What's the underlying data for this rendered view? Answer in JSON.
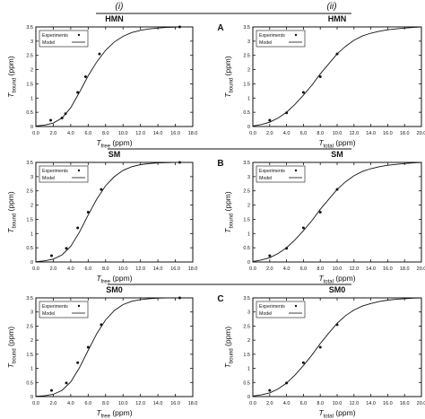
{
  "header": {
    "col_left_label": "(i)",
    "col_right_label": "(ii)"
  },
  "row_labels": [
    "A",
    "B",
    "C"
  ],
  "chart_data": [
    {
      "type": "scatter",
      "title": "HMN",
      "xlabel_main": "T",
      "xlabel_sub": "free",
      "xlabel_unit": "(ppm)",
      "ylabel_main": "T",
      "ylabel_sub": "bound",
      "ylabel_unit": "(ppm)",
      "xlim": [
        0,
        18
      ],
      "ylim": [
        0,
        3.5
      ],
      "xticks": [
        "0.0",
        "2.0",
        "4.0",
        "6.0",
        "8.0",
        "10.0",
        "12.0",
        "14.0",
        "16.0",
        "18.0"
      ],
      "yticks": [
        "0",
        "0.5",
        "1",
        "1.5",
        "2",
        "2.5",
        "3",
        "3.5"
      ],
      "legend": {
        "position": "top-left",
        "experiments": "Experiments",
        "model": "Model"
      },
      "series": [
        {
          "name": "Experiments",
          "kind": "points",
          "x": [
            1.7,
            3.0,
            3.4,
            4.8,
            5.7,
            7.3,
            16.5
          ],
          "y": [
            0.22,
            0.3,
            0.45,
            1.2,
            1.75,
            2.55,
            3.5
          ]
        },
        {
          "name": "Model",
          "kind": "line",
          "x": [
            0,
            1,
            2,
            3,
            4,
            5,
            6,
            7,
            8,
            9,
            10,
            11,
            12,
            13,
            14,
            15,
            16,
            16.5
          ],
          "y": [
            0.02,
            0.05,
            0.12,
            0.3,
            0.66,
            1.2,
            1.78,
            2.28,
            2.68,
            2.97,
            3.17,
            3.3,
            3.38,
            3.43,
            3.46,
            3.48,
            3.49,
            3.5
          ]
        }
      ]
    },
    {
      "type": "scatter",
      "title": "HMN",
      "xlabel_main": "T",
      "xlabel_sub": "total",
      "xlabel_unit": "(ppm)",
      "ylabel_main": "T",
      "ylabel_sub": "bound",
      "ylabel_unit": "(ppm)",
      "xlim": [
        0,
        20
      ],
      "ylim": [
        0,
        3.5
      ],
      "xticks": [
        "0.0",
        "2.0",
        "4.0",
        "6.0",
        "8.0",
        "10.0",
        "12.0",
        "14.0",
        "16.0",
        "18.0",
        "20.0"
      ],
      "yticks": [
        "0",
        "0.5",
        "1",
        "1.5",
        "2",
        "2.5",
        "3",
        "3.5"
      ],
      "legend": {
        "position": "top-left",
        "experiments": "Experiments",
        "model": "Model"
      },
      "series": [
        {
          "name": "Experiments",
          "kind": "points",
          "x": [
            2,
            4,
            6,
            8,
            10
          ],
          "y": [
            0.22,
            0.48,
            1.2,
            1.75,
            2.55
          ]
        },
        {
          "name": "Model",
          "kind": "line",
          "x": [
            0,
            1,
            2,
            3,
            4,
            5,
            6,
            7,
            8,
            9,
            10,
            11,
            12,
            13,
            14,
            15,
            16,
            17,
            18,
            19,
            20
          ],
          "y": [
            0.02,
            0.07,
            0.15,
            0.3,
            0.5,
            0.78,
            1.1,
            1.45,
            1.85,
            2.2,
            2.55,
            2.82,
            3.03,
            3.18,
            3.28,
            3.35,
            3.4,
            3.43,
            3.46,
            3.48,
            3.5
          ]
        }
      ]
    },
    {
      "type": "scatter",
      "title": "SM",
      "xlabel_main": "T",
      "xlabel_sub": "free",
      "xlabel_unit": "(ppm)",
      "ylabel_main": "T",
      "ylabel_sub": "bound",
      "ylabel_unit": "(ppm)",
      "xlim": [
        0,
        18
      ],
      "ylim": [
        0,
        3.5
      ],
      "xticks": [
        "0.0",
        "2.0",
        "4.0",
        "6.0",
        "8.0",
        "10.0",
        "12.0",
        "14.0",
        "16.0",
        "18.0"
      ],
      "yticks": [
        "0",
        "0.5",
        "1",
        "1.5",
        "2",
        "2.5",
        "3",
        "3.5"
      ],
      "legend": {
        "position": "top-left",
        "experiments": "Experiments",
        "model": "Model"
      },
      "series": [
        {
          "name": "Experiments",
          "kind": "points",
          "x": [
            1.8,
            3.5,
            4.8,
            6.0,
            7.5,
            16.5
          ],
          "y": [
            0.22,
            0.48,
            1.2,
            1.75,
            2.55,
            3.5
          ]
        },
        {
          "name": "Model",
          "kind": "line",
          "x": [
            0,
            1,
            2,
            3,
            4,
            5,
            6,
            7,
            8,
            9,
            10,
            11,
            12,
            13,
            14,
            15,
            16,
            16.5
          ],
          "y": [
            0.01,
            0.04,
            0.1,
            0.25,
            0.55,
            1.05,
            1.65,
            2.22,
            2.68,
            3.0,
            3.22,
            3.35,
            3.42,
            3.46,
            3.48,
            3.49,
            3.5,
            3.5
          ]
        }
      ]
    },
    {
      "type": "scatter",
      "title": "SM",
      "xlabel_main": "T",
      "xlabel_sub": "total",
      "xlabel_unit": "(ppm)",
      "ylabel_main": "T",
      "ylabel_sub": "bound",
      "ylabel_unit": "(ppm)",
      "xlim": [
        0,
        20
      ],
      "ylim": [
        0,
        3.5
      ],
      "xticks": [
        "0.0",
        "2.0",
        "4.0",
        "6.0",
        "8.0",
        "10.0",
        "12.0",
        "14.0",
        "16.0",
        "18.0",
        "20.0"
      ],
      "yticks": [
        "0",
        "0.5",
        "1",
        "1.5",
        "2",
        "2.5",
        "3",
        "3.5"
      ],
      "legend": {
        "position": "top-left",
        "experiments": "Experiments",
        "model": "Model"
      },
      "series": [
        {
          "name": "Experiments",
          "kind": "points",
          "x": [
            2,
            4,
            6,
            8,
            10
          ],
          "y": [
            0.22,
            0.48,
            1.2,
            1.75,
            2.55
          ]
        },
        {
          "name": "Model",
          "kind": "line",
          "x": [
            0,
            1,
            2,
            3,
            4,
            5,
            6,
            7,
            8,
            9,
            10,
            11,
            12,
            13,
            14,
            15,
            16,
            17,
            18,
            19,
            20
          ],
          "y": [
            0.02,
            0.07,
            0.15,
            0.3,
            0.5,
            0.78,
            1.1,
            1.45,
            1.85,
            2.2,
            2.55,
            2.82,
            3.03,
            3.18,
            3.28,
            3.35,
            3.4,
            3.43,
            3.46,
            3.48,
            3.5
          ]
        }
      ]
    },
    {
      "type": "scatter",
      "title": "SM0",
      "xlabel_main": "T",
      "xlabel_sub": "free",
      "xlabel_unit": "(ppm)",
      "ylabel_main": "T",
      "ylabel_sub": "bound",
      "ylabel_unit": "(ppm)",
      "xlim": [
        0,
        18
      ],
      "ylim": [
        0,
        3.5
      ],
      "xticks": [
        "0.0",
        "2.0",
        "4.0",
        "6.0",
        "8.0",
        "10.0",
        "12.0",
        "14.0",
        "16.0",
        "18.0"
      ],
      "yticks": [
        "0",
        "0.5",
        "1",
        "1.5",
        "2",
        "2.5",
        "3",
        "3.5"
      ],
      "legend": {
        "position": "top-left",
        "experiments": "Experiments",
        "model": "Model"
      },
      "series": [
        {
          "name": "Experiments",
          "kind": "points",
          "x": [
            1.8,
            3.5,
            4.8,
            6.0,
            7.5,
            16.5
          ],
          "y": [
            0.22,
            0.48,
            1.2,
            1.75,
            2.55,
            3.5
          ]
        },
        {
          "name": "Model",
          "kind": "line",
          "x": [
            0,
            1,
            2,
            3,
            4,
            5,
            6,
            7,
            8,
            9,
            10,
            11,
            12,
            13,
            14,
            15,
            16,
            16.5
          ],
          "y": [
            0.01,
            0.03,
            0.08,
            0.22,
            0.52,
            1.02,
            1.64,
            2.24,
            2.72,
            3.05,
            3.26,
            3.38,
            3.44,
            3.47,
            3.49,
            3.5,
            3.5,
            3.5
          ]
        }
      ]
    },
    {
      "type": "scatter",
      "title": "SM0",
      "xlabel_main": "T",
      "xlabel_sub": "total",
      "xlabel_unit": "(ppm)",
      "ylabel_main": "T",
      "ylabel_sub": "bound",
      "ylabel_unit": "(ppm)",
      "xlim": [
        0,
        20
      ],
      "ylim": [
        0,
        3.5
      ],
      "xticks": [
        "0.0",
        "2.0",
        "4.0",
        "6.0",
        "8.0",
        "10.0",
        "12.0",
        "14.0",
        "16.0",
        "18.0",
        "20.0"
      ],
      "yticks": [
        "0",
        "0.5",
        "1",
        "1.5",
        "2",
        "2.5",
        "3",
        "3.5"
      ],
      "legend": {
        "position": "top-left",
        "experiments": "Experiments",
        "model": "Model"
      },
      "series": [
        {
          "name": "Experiments",
          "kind": "points",
          "x": [
            2,
            4,
            6,
            8,
            10
          ],
          "y": [
            0.22,
            0.48,
            1.2,
            1.75,
            2.55
          ]
        },
        {
          "name": "Model",
          "kind": "line",
          "x": [
            0,
            1,
            2,
            3,
            4,
            5,
            6,
            7,
            8,
            9,
            10,
            11,
            12,
            13,
            14,
            15,
            16,
            17,
            18,
            19,
            20
          ],
          "y": [
            0.02,
            0.06,
            0.13,
            0.27,
            0.48,
            0.76,
            1.1,
            1.47,
            1.88,
            2.25,
            2.6,
            2.87,
            3.07,
            3.21,
            3.3,
            3.37,
            3.42,
            3.45,
            3.47,
            3.49,
            3.5
          ]
        }
      ]
    }
  ]
}
